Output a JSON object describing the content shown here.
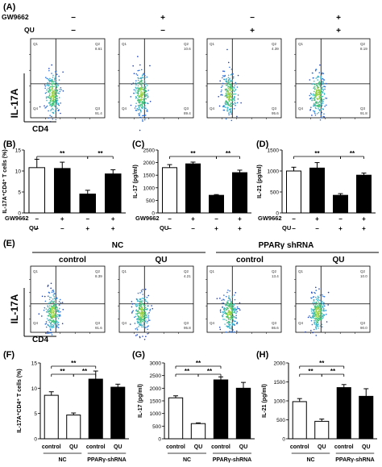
{
  "panel_labels": [
    "(A)",
    "(B)",
    "(C)",
    "(D)",
    "(E)",
    "(F)",
    "(G)",
    "(H)"
  ],
  "treatment_labels": {
    "gw": "GW9662",
    "qu": "QU"
  },
  "treatment_A": {
    "gw": [
      "−",
      "+",
      "−",
      "+"
    ],
    "qu": [
      "−",
      "−",
      "+",
      "+"
    ]
  },
  "treatment_bar": {
    "gw": [
      "−",
      "+",
      "−",
      "+"
    ],
    "qu": [
      "−",
      "−",
      "+",
      "+"
    ]
  },
  "flow_axes": {
    "y": "IL-17A",
    "x": "CD4"
  },
  "quadrant_labels": [
    "Q1",
    "Q2",
    "Q3",
    "Q4"
  ],
  "flow_A": [
    {
      "q2": "8.61",
      "q3": "91.4"
    },
    {
      "q2": "10.6",
      "q3": "89.4"
    },
    {
      "q2": "4.39",
      "q3": "95.6"
    },
    {
      "q2": "8.19",
      "q3": "91.8"
    }
  ],
  "group_headers_E": {
    "nc": "NC",
    "ppar": "PPARγ shRNA",
    "control1": "control",
    "qu1": "QU",
    "control2": "control",
    "qu2": "QU"
  },
  "flow_E": [
    {
      "q2": "8.39",
      "q3": "91.6"
    },
    {
      "q2": "4.21",
      "q3": "95.8"
    },
    {
      "q2": "13.4",
      "q3": "86.6"
    },
    {
      "q2": "10.0",
      "q3": "90.0"
    }
  ],
  "group_labels_bottom": {
    "control": "control",
    "qu": "QU",
    "nc": "NC",
    "ppar": "PPARγ-shRNA"
  },
  "significance": "**",
  "colors": {
    "open_bar": "#ffffff",
    "filled_bar": "#000000",
    "axis": "#000000"
  },
  "chart_data": [
    {
      "panel": "(B)",
      "type": "bar",
      "ylabel": "IL-17A⁺CD4⁺ T cells (%)",
      "yticks": [
        0,
        5,
        10,
        15
      ],
      "ylim": [
        0,
        15
      ],
      "categories": [
        "−/−",
        "+/−",
        "−/+",
        "+/+"
      ],
      "values": [
        10.8,
        10.6,
        4.5,
        9.3
      ],
      "errors": [
        2.0,
        1.5,
        0.9,
        1.0
      ]
    },
    {
      "panel": "(C)",
      "type": "bar",
      "ylabel": "IL-17 (pg/ml)",
      "yticks": [
        0,
        500,
        1000,
        1500,
        2000,
        2500
      ],
      "ylim": [
        0,
        2500
      ],
      "categories": [
        "−/−",
        "+/−",
        "−/+",
        "+/+"
      ],
      "values": [
        1800,
        1950,
        700,
        1600
      ],
      "errors": [
        120,
        70,
        30,
        100
      ]
    },
    {
      "panel": "(D)",
      "type": "bar",
      "ylabel": "IL-21 (pg/ml)",
      "yticks": [
        0,
        500,
        1000,
        1500
      ],
      "ylim": [
        0,
        1500
      ],
      "categories": [
        "−/−",
        "+/−",
        "−/+",
        "+/+"
      ],
      "values": [
        1000,
        1070,
        420,
        900
      ],
      "errors": [
        90,
        130,
        40,
        50
      ]
    },
    {
      "panel": "(F)",
      "type": "bar",
      "ylabel": "IL-17A⁺CD4⁺ T cells (%)",
      "yticks": [
        0,
        5,
        10,
        15
      ],
      "ylim": [
        0,
        15
      ],
      "categories": [
        "control",
        "QU",
        "control",
        "QU"
      ],
      "values": [
        8.6,
        4.7,
        11.8,
        10.2
      ],
      "errors": [
        0.7,
        0.4,
        1.6,
        0.6
      ]
    },
    {
      "panel": "(G)",
      "type": "bar",
      "ylabel": "IL-17 (pg/ml)",
      "yticks": [
        0,
        500,
        1000,
        1500,
        2000,
        2500,
        3000
      ],
      "ylim": [
        0,
        3000
      ],
      "categories": [
        "control",
        "QU",
        "control",
        "QU"
      ],
      "values": [
        1620,
        600,
        2330,
        2000
      ],
      "errors": [
        80,
        30,
        120,
        230
      ]
    },
    {
      "panel": "(H)",
      "type": "bar",
      "ylabel": "IL-21 (pg/ml)",
      "yticks": [
        0,
        500,
        1000,
        1500,
        2000
      ],
      "ylim": [
        0,
        2000
      ],
      "categories": [
        "control",
        "QU",
        "control",
        "QU"
      ],
      "values": [
        980,
        460,
        1350,
        1120
      ],
      "errors": [
        80,
        60,
        80,
        200
      ]
    }
  ]
}
